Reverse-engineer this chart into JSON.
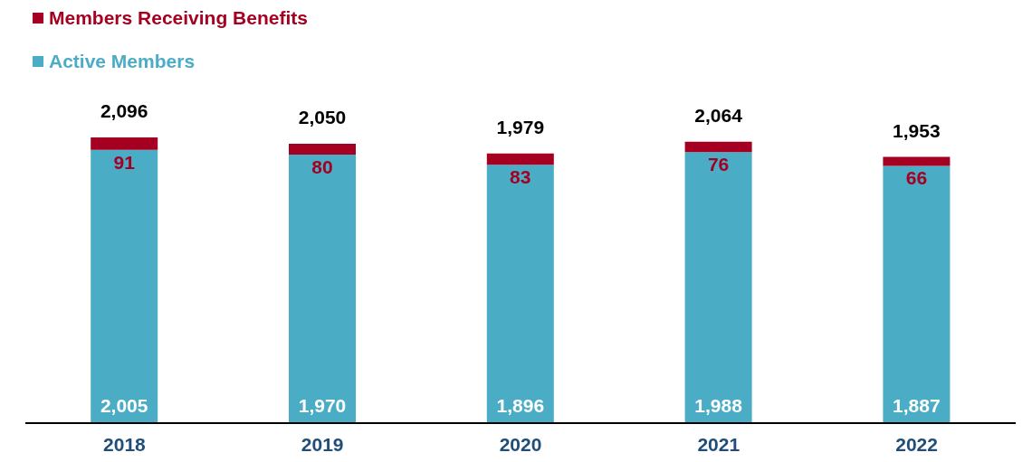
{
  "chart_data": {
    "type": "bar",
    "stacked": true,
    "categories": [
      "2018",
      "2019",
      "2020",
      "2021",
      "2022"
    ],
    "series": [
      {
        "name": "Active Members",
        "color": "#4bacc6",
        "values": [
          2005,
          1970,
          1896,
          1988,
          1887
        ],
        "value_labels": [
          "2,005",
          "1,970",
          "1,896",
          "1,988",
          "1,887"
        ]
      },
      {
        "name": "Members Receiving Benefits",
        "color": "#a50021",
        "values": [
          91,
          80,
          83,
          76,
          66
        ],
        "value_labels": [
          "91",
          "80",
          "83",
          "76",
          "66"
        ]
      }
    ],
    "totals": [
      "2,096",
      "2,050",
      "1,979",
      "2,064",
      "1,953"
    ],
    "legend": "top left",
    "grid": false
  }
}
